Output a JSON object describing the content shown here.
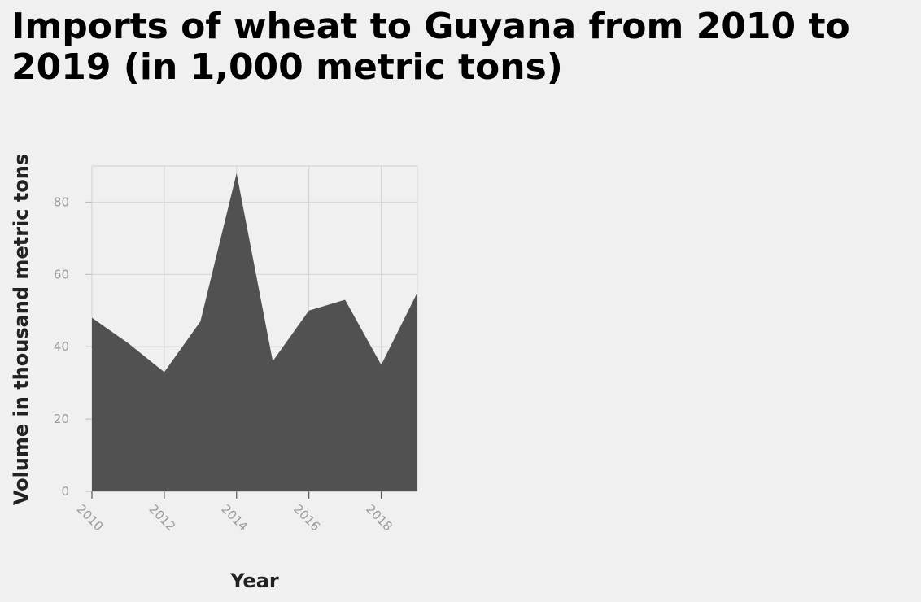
{
  "chart_data": {
    "type": "area",
    "title": "Imports of wheat to Guyana from 2010 to 2019 (in 1,000 metric tons)",
    "xlabel": "Year",
    "ylabel": "Volume in thousand metric tons",
    "x": [
      2010,
      2011,
      2012,
      2013,
      2014,
      2015,
      2016,
      2017,
      2018,
      2019
    ],
    "values": [
      48,
      41,
      33,
      47,
      88,
      36,
      50,
      53,
      35,
      55
    ],
    "xlim": [
      2010,
      2019
    ],
    "ylim": [
      0,
      90
    ],
    "x_ticks": [
      2010,
      2012,
      2014,
      2016,
      2018
    ],
    "y_ticks": [
      0,
      20,
      40,
      60,
      80
    ],
    "grid": true,
    "fill_color": "#515151",
    "background_color": "#f0f0f0"
  }
}
